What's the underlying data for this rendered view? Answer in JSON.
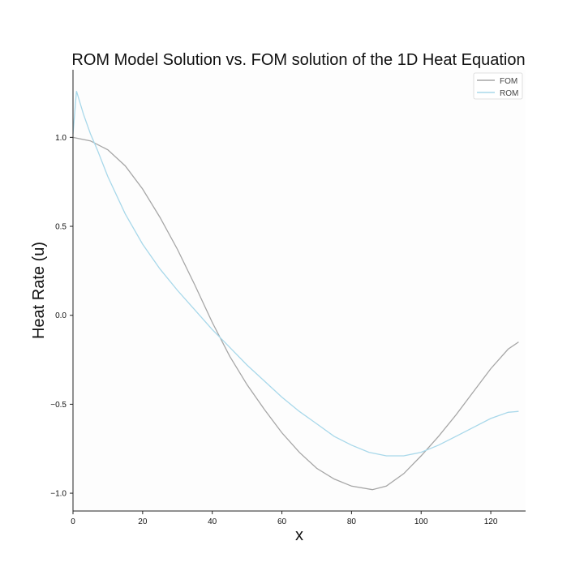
{
  "chart_data": {
    "type": "line",
    "title": "ROM Model Solution vs. FOM solution of the 1D Heat Equation",
    "xlabel": "x",
    "ylabel": "Heat Rate (u)",
    "xlim": [
      0,
      130
    ],
    "ylim": [
      -1.1,
      1.38
    ],
    "xticks": [
      0,
      20,
      40,
      60,
      80,
      100,
      120
    ],
    "yticks": [
      -1.0,
      -0.5,
      0.0,
      0.5,
      1.0
    ],
    "xtick_labels": [
      "0",
      "20",
      "40",
      "60",
      "80",
      "100",
      "120"
    ],
    "ytick_labels": [
      "−1.0",
      "−0.5",
      "0.0",
      "0.5",
      "1.0"
    ],
    "legend_position": "top-right",
    "grid": false,
    "series": [
      {
        "name": "FOM",
        "color": "#a6a6a6",
        "x": [
          0,
          5,
          10,
          15,
          20,
          25,
          30,
          35,
          40,
          45,
          50,
          55,
          60,
          65,
          70,
          75,
          80,
          86,
          90,
          95,
          100,
          105,
          110,
          115,
          120,
          125,
          128
        ],
        "y": [
          1.0,
          0.98,
          0.93,
          0.84,
          0.71,
          0.55,
          0.37,
          0.17,
          -0.04,
          -0.23,
          -0.39,
          -0.53,
          -0.66,
          -0.77,
          -0.86,
          -0.92,
          -0.96,
          -0.98,
          -0.96,
          -0.89,
          -0.79,
          -0.68,
          -0.56,
          -0.43,
          -0.3,
          -0.19,
          -0.15
        ]
      },
      {
        "name": "ROM",
        "color": "#a8d8ea",
        "x": [
          0,
          1,
          3,
          5,
          7,
          10,
          15,
          20,
          25,
          30,
          35,
          40,
          45,
          50,
          55,
          60,
          65,
          70,
          75,
          80,
          85,
          90,
          95,
          100,
          105,
          110,
          115,
          120,
          125,
          128
        ],
        "y": [
          1.02,
          1.26,
          1.13,
          1.02,
          0.93,
          0.78,
          0.57,
          0.4,
          0.26,
          0.14,
          0.03,
          -0.08,
          -0.18,
          -0.28,
          -0.37,
          -0.46,
          -0.54,
          -0.61,
          -0.68,
          -0.73,
          -0.77,
          -0.79,
          -0.79,
          -0.77,
          -0.73,
          -0.68,
          -0.63,
          -0.58,
          -0.545,
          -0.54
        ]
      }
    ]
  }
}
